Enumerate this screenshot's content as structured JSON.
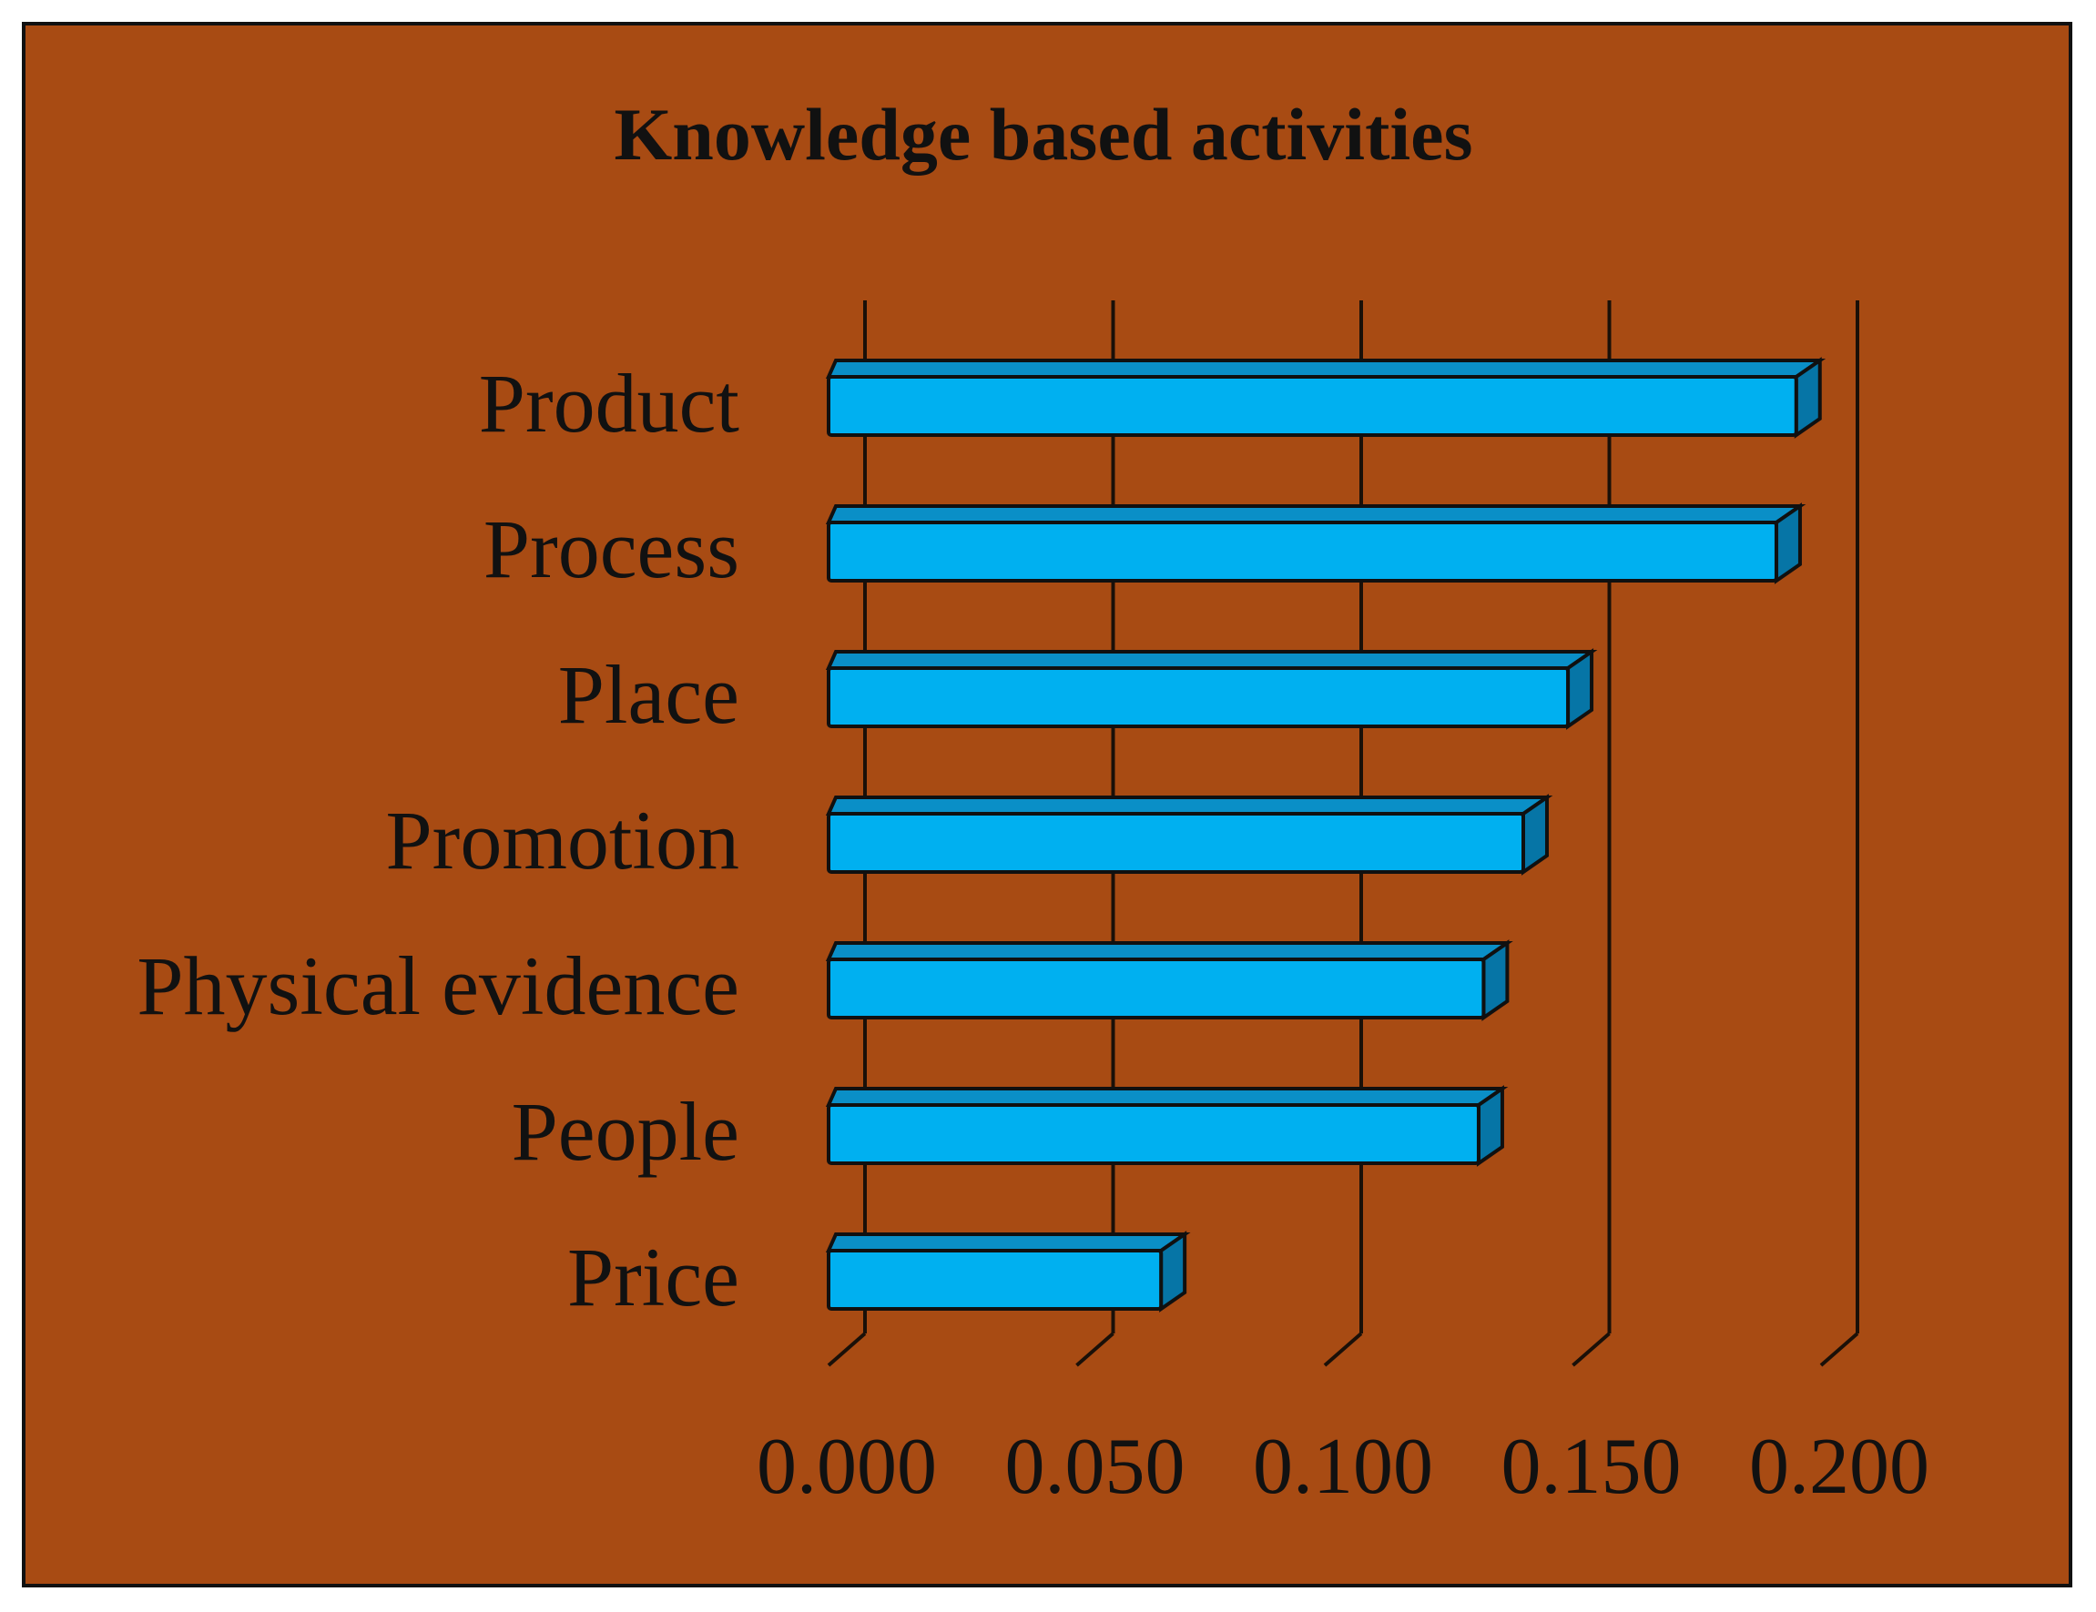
{
  "chart_data": {
    "type": "bar",
    "orientation": "horizontal",
    "title": "Knowledge based activities",
    "xlabel": "",
    "ylabel": "",
    "categories": [
      "Product",
      "Process",
      "Place",
      "Promotion",
      "Physical evidence",
      "People",
      "Price"
    ],
    "values": [
      0.195,
      0.191,
      0.149,
      0.14,
      0.132,
      0.131,
      0.067
    ],
    "xlim": [
      0,
      0.2
    ],
    "x_ticks": [
      "0.000",
      "0.050",
      "0.100",
      "0.150",
      "0.200"
    ],
    "grid": "vertical",
    "legend": "none",
    "colors": {
      "background": "#a84b13",
      "bar": "#00b0f0",
      "bar_top": "#0a8fc7",
      "bar_side": "#0675a6",
      "gridline": "#1a1008",
      "text": "#111111"
    }
  }
}
